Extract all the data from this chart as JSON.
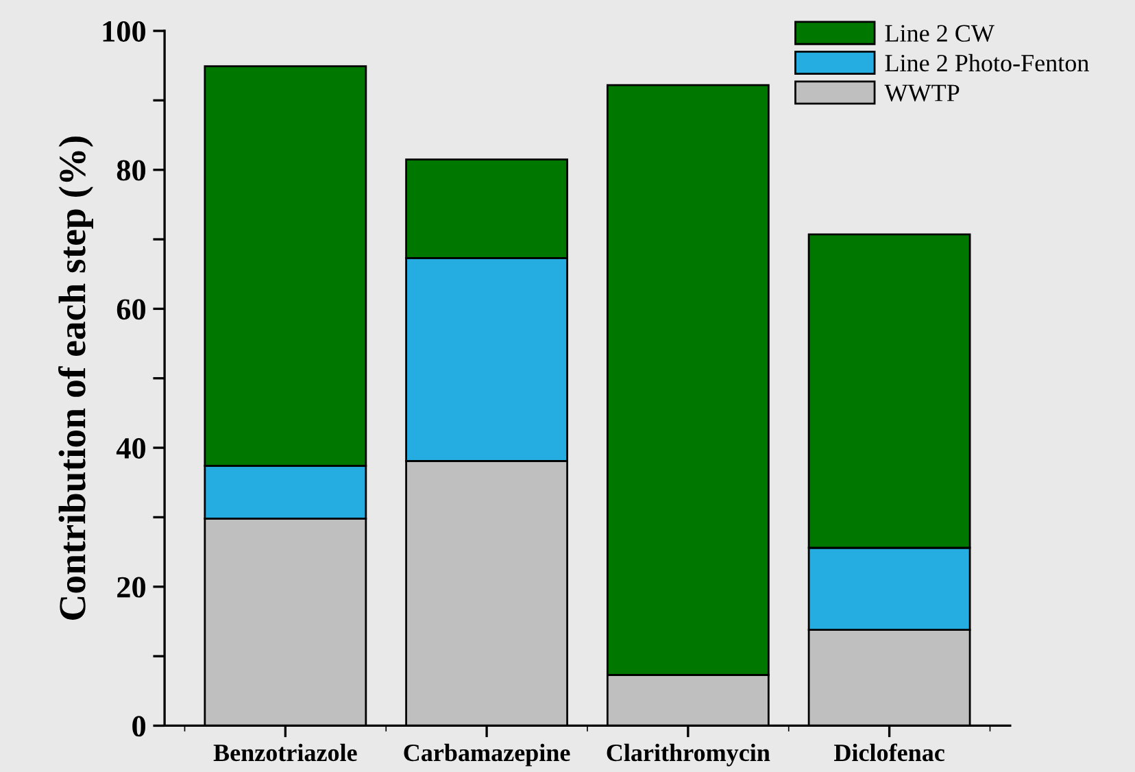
{
  "chart_data": {
    "type": "bar",
    "stacked": true,
    "ylabel": "Contribution of each step (%)",
    "categories": [
      "Benzotriazole",
      "Carbamazepine",
      "Clarithromycin",
      "Diclofenac"
    ],
    "series": [
      {
        "name": "WWTP",
        "color": "#bfbfbf",
        "values": [
          29.8,
          38.1,
          7.3,
          13.8
        ]
      },
      {
        "name": "Line 2 Photo-Fenton",
        "color": "#25ade2",
        "values": [
          7.6,
          29.2,
          0,
          11.8
        ]
      },
      {
        "name": "Line 2 CW",
        "color": "#007800",
        "values": [
          57.5,
          14.2,
          84.9,
          45.1
        ]
      }
    ],
    "ylim": [
      0,
      100
    ],
    "yticks": [
      0,
      {
        "value": 10,
        "label": null
      },
      20,
      {
        "value": 30,
        "label": null
      },
      40,
      {
        "value": 50,
        "label": null
      },
      60,
      {
        "value": 70,
        "label": null
      },
      80,
      {
        "value": 90,
        "label": null
      },
      100
    ],
    "grid": false,
    "legend": "top right"
  }
}
